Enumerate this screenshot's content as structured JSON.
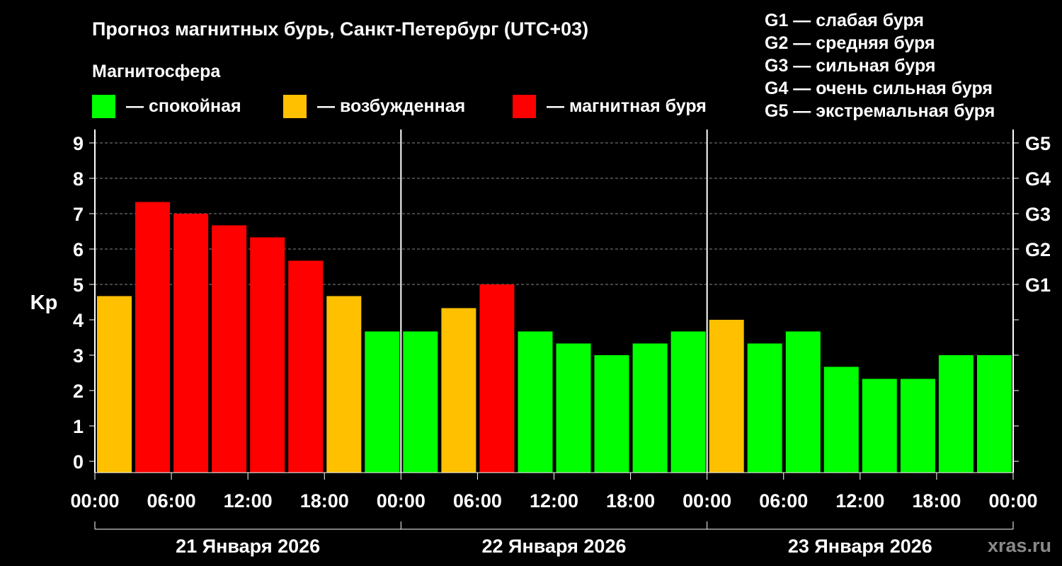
{
  "chart_data": {
    "type": "bar",
    "title": "Прогноз магнитных бурь, Санкт-Петербург (UTC+03)",
    "ylabel": "Kp",
    "ylim": [
      0,
      9
    ],
    "yticks": [
      "0",
      "1",
      "2",
      "3",
      "4",
      "5",
      "6",
      "7",
      "8",
      "9"
    ],
    "storm_ticks": [
      {
        "kp": 5,
        "label": "G1"
      },
      {
        "kp": 6,
        "label": "G2"
      },
      {
        "kp": 7,
        "label": "G3"
      },
      {
        "kp": 8,
        "label": "G4"
      },
      {
        "kp": 9,
        "label": "G5"
      }
    ],
    "grid": "dashed horizontal lines at Kp 5–9",
    "magnetosphere_legend": {
      "heading": "Магнитосфера",
      "items": [
        {
          "key": "calm",
          "label": "— спокойная",
          "color": "#00FF00"
        },
        {
          "key": "excited",
          "label": "— возбужденная",
          "color": "#FFC000"
        },
        {
          "key": "storm",
          "label": "— магнитная буря",
          "color": "#FF0000"
        }
      ]
    },
    "storm_scale": [
      "G1 — слабая буря",
      "G2 — средняя буря",
      "G3 — сильная буря",
      "G4 — очень сильная буря",
      "G5 — экстремальная буря"
    ],
    "x_tick_labels": [
      "00:00",
      "06:00",
      "12:00",
      "18:00",
      "00:00",
      "06:00",
      "12:00",
      "18:00",
      "00:00",
      "06:00",
      "12:00",
      "18:00",
      "00:00"
    ],
    "days": [
      "21 Января 2026",
      "22 Января 2026",
      "23 Января 2026"
    ],
    "intervals": [
      "00-03",
      "03-06",
      "06-09",
      "09-12",
      "12-15",
      "15-18",
      "18-21",
      "21-24"
    ],
    "values": [
      4.67,
      7.33,
      7.0,
      6.67,
      6.33,
      5.67,
      4.67,
      3.67,
      3.67,
      4.33,
      5.0,
      3.67,
      3.33,
      3.0,
      3.33,
      3.67,
      4.0,
      3.33,
      3.67,
      2.67,
      2.33,
      2.33,
      3.0,
      3.0
    ],
    "levels": [
      "excited",
      "storm",
      "storm",
      "storm",
      "storm",
      "storm",
      "excited",
      "calm",
      "calm",
      "excited",
      "storm",
      "calm",
      "calm",
      "calm",
      "calm",
      "calm",
      "excited",
      "calm",
      "calm",
      "calm",
      "calm",
      "calm",
      "calm",
      "calm"
    ]
  },
  "watermark": "xras.ru",
  "colors": {
    "background": "#000000",
    "axis": "#FFFFFF",
    "grid": "#888888"
  }
}
